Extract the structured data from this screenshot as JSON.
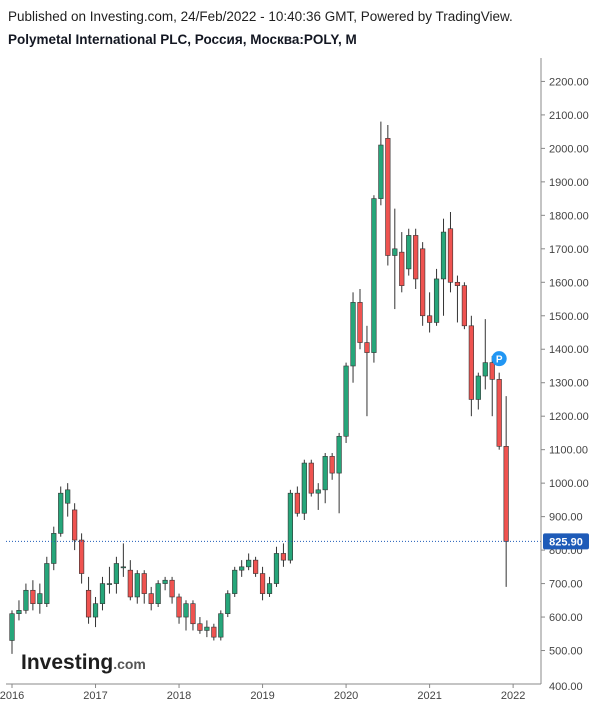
{
  "header": {
    "published": "Published on Investing.com, 24/Feb/2022 - 10:40:36 GMT, Powered by TradingView.",
    "symbol_title": "Polymetal International PLC, Россия, Москва:POLY, M"
  },
  "logo": {
    "main": "Investing",
    "sub": ".com"
  },
  "marker": {
    "label": "P"
  },
  "colors": {
    "up": "#26a67a",
    "down": "#ef5350",
    "price_line": "#1e5bb8",
    "marker": "#2196f3",
    "axis": "#888888"
  },
  "chart_data": {
    "type": "candlestick",
    "interval": "M",
    "ylim": [
      400,
      2270
    ],
    "y_ticks": [
      500,
      600,
      700,
      800,
      900,
      1000,
      1100,
      1200,
      1300,
      1400,
      1500,
      1600,
      1700,
      1800,
      1900,
      2000,
      2100,
      2200
    ],
    "y_tick_labels": [
      "500.00",
      "600.00",
      "700.00",
      "800.00",
      "900.00",
      "1000.00",
      "1100.00",
      "1200.00",
      "1300.00",
      "1400.00",
      "1500.00",
      "1600.00",
      "1700.00",
      "1800.00",
      "1900.00",
      "2000.00",
      "2100.00",
      "2200.00"
    ],
    "bottom_partial_label": "400.00",
    "x_ticks": [
      "2016",
      "2017",
      "2018",
      "2019",
      "2020",
      "2021",
      "2022"
    ],
    "x_tick_positions": [
      0,
      12,
      24,
      36,
      48,
      60,
      72
    ],
    "last_price": 825.9,
    "last_price_label": "825.90",
    "marker_index": 70,
    "candles": [
      {
        "o": 530,
        "h": 620,
        "l": 490,
        "c": 610
      },
      {
        "o": 610,
        "h": 650,
        "l": 590,
        "c": 620
      },
      {
        "o": 620,
        "h": 700,
        "l": 610,
        "c": 680
      },
      {
        "o": 680,
        "h": 710,
        "l": 620,
        "c": 640
      },
      {
        "o": 640,
        "h": 700,
        "l": 610,
        "c": 670
      },
      {
        "o": 640,
        "h": 780,
        "l": 630,
        "c": 760
      },
      {
        "o": 760,
        "h": 870,
        "l": 740,
        "c": 850
      },
      {
        "o": 850,
        "h": 990,
        "l": 840,
        "c": 970
      },
      {
        "o": 940,
        "h": 1000,
        "l": 900,
        "c": 980
      },
      {
        "o": 920,
        "h": 940,
        "l": 800,
        "c": 830
      },
      {
        "o": 830,
        "h": 850,
        "l": 700,
        "c": 730
      },
      {
        "o": 680,
        "h": 720,
        "l": 580,
        "c": 600
      },
      {
        "o": 600,
        "h": 660,
        "l": 570,
        "c": 640
      },
      {
        "o": 640,
        "h": 720,
        "l": 620,
        "c": 700
      },
      {
        "o": 700,
        "h": 750,
        "l": 670,
        "c": 700
      },
      {
        "o": 700,
        "h": 780,
        "l": 670,
        "c": 760
      },
      {
        "o": 750,
        "h": 820,
        "l": 720,
        "c": 750
      },
      {
        "o": 740,
        "h": 770,
        "l": 650,
        "c": 660
      },
      {
        "o": 660,
        "h": 740,
        "l": 640,
        "c": 730
      },
      {
        "o": 730,
        "h": 740,
        "l": 640,
        "c": 670
      },
      {
        "o": 670,
        "h": 690,
        "l": 620,
        "c": 640
      },
      {
        "o": 640,
        "h": 710,
        "l": 630,
        "c": 700
      },
      {
        "o": 700,
        "h": 720,
        "l": 680,
        "c": 710
      },
      {
        "o": 710,
        "h": 720,
        "l": 640,
        "c": 660
      },
      {
        "o": 660,
        "h": 670,
        "l": 580,
        "c": 600
      },
      {
        "o": 600,
        "h": 650,
        "l": 560,
        "c": 640
      },
      {
        "o": 640,
        "h": 650,
        "l": 560,
        "c": 580
      },
      {
        "o": 580,
        "h": 600,
        "l": 550,
        "c": 560
      },
      {
        "o": 560,
        "h": 590,
        "l": 540,
        "c": 570
      },
      {
        "o": 570,
        "h": 580,
        "l": 530,
        "c": 540
      },
      {
        "o": 540,
        "h": 620,
        "l": 530,
        "c": 610
      },
      {
        "o": 610,
        "h": 680,
        "l": 600,
        "c": 670
      },
      {
        "o": 670,
        "h": 750,
        "l": 660,
        "c": 740
      },
      {
        "o": 740,
        "h": 770,
        "l": 720,
        "c": 750
      },
      {
        "o": 750,
        "h": 790,
        "l": 740,
        "c": 770
      },
      {
        "o": 770,
        "h": 780,
        "l": 720,
        "c": 730
      },
      {
        "o": 730,
        "h": 750,
        "l": 650,
        "c": 670
      },
      {
        "o": 670,
        "h": 720,
        "l": 660,
        "c": 700
      },
      {
        "o": 700,
        "h": 810,
        "l": 690,
        "c": 790
      },
      {
        "o": 790,
        "h": 820,
        "l": 750,
        "c": 770
      },
      {
        "o": 770,
        "h": 980,
        "l": 760,
        "c": 970
      },
      {
        "o": 970,
        "h": 990,
        "l": 900,
        "c": 910
      },
      {
        "o": 910,
        "h": 1070,
        "l": 890,
        "c": 1060
      },
      {
        "o": 1060,
        "h": 1070,
        "l": 960,
        "c": 970
      },
      {
        "o": 970,
        "h": 1000,
        "l": 920,
        "c": 980
      },
      {
        "o": 980,
        "h": 1090,
        "l": 940,
        "c": 1080
      },
      {
        "o": 1080,
        "h": 1090,
        "l": 1010,
        "c": 1030
      },
      {
        "o": 1030,
        "h": 1150,
        "l": 910,
        "c": 1140
      },
      {
        "o": 1140,
        "h": 1360,
        "l": 1120,
        "c": 1350
      },
      {
        "o": 1350,
        "h": 1570,
        "l": 1300,
        "c": 1540
      },
      {
        "o": 1540,
        "h": 1580,
        "l": 1400,
        "c": 1420
      },
      {
        "o": 1420,
        "h": 1470,
        "l": 1200,
        "c": 1390
      },
      {
        "o": 1390,
        "h": 1860,
        "l": 1360,
        "c": 1850
      },
      {
        "o": 1850,
        "h": 2080,
        "l": 1830,
        "c": 2010
      },
      {
        "o": 2030,
        "h": 2070,
        "l": 1650,
        "c": 1680
      },
      {
        "o": 1680,
        "h": 1820,
        "l": 1520,
        "c": 1700
      },
      {
        "o": 1690,
        "h": 1750,
        "l": 1570,
        "c": 1590
      },
      {
        "o": 1640,
        "h": 1760,
        "l": 1620,
        "c": 1740
      },
      {
        "o": 1740,
        "h": 1760,
        "l": 1580,
        "c": 1610
      },
      {
        "o": 1700,
        "h": 1720,
        "l": 1470,
        "c": 1500
      },
      {
        "o": 1500,
        "h": 1570,
        "l": 1450,
        "c": 1480
      },
      {
        "o": 1480,
        "h": 1640,
        "l": 1470,
        "c": 1610
      },
      {
        "o": 1610,
        "h": 1790,
        "l": 1500,
        "c": 1750
      },
      {
        "o": 1760,
        "h": 1810,
        "l": 1570,
        "c": 1600
      },
      {
        "o": 1600,
        "h": 1620,
        "l": 1480,
        "c": 1590
      },
      {
        "o": 1590,
        "h": 1600,
        "l": 1460,
        "c": 1470
      },
      {
        "o": 1470,
        "h": 1500,
        "l": 1200,
        "c": 1250
      },
      {
        "o": 1250,
        "h": 1330,
        "l": 1220,
        "c": 1320
      },
      {
        "o": 1320,
        "h": 1490,
        "l": 1280,
        "c": 1360
      },
      {
        "o": 1360,
        "h": 1380,
        "l": 1200,
        "c": 1310
      },
      {
        "o": 1310,
        "h": 1330,
        "l": 1100,
        "c": 1110
      },
      {
        "o": 1110,
        "h": 1260,
        "l": 690,
        "c": 826
      }
    ]
  }
}
